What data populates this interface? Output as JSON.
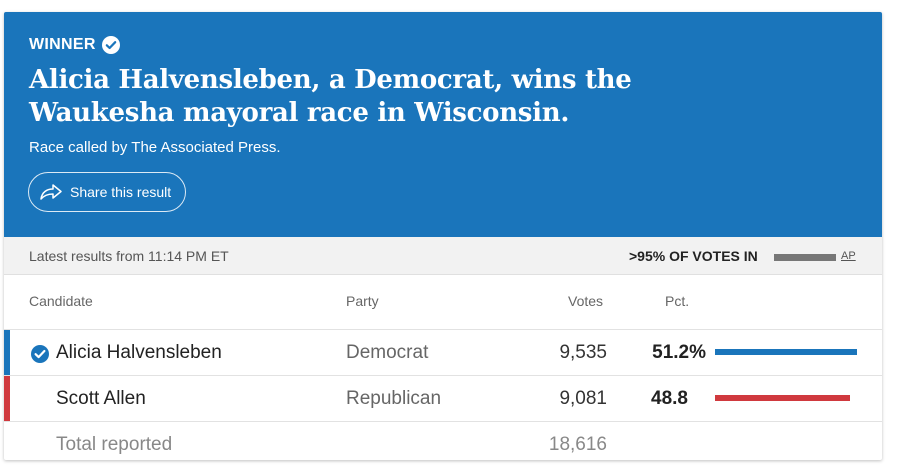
{
  "banner": {
    "winner_label": "WINNER",
    "headline": "Alicia Halvensleben, a Democrat, wins the Waukesha mayoral race in Wisconsin.",
    "called_by": "Race called by The Associated Press.",
    "share_label": "Share this result",
    "color": "#1a75bb"
  },
  "status": {
    "latest": "Latest results from 11:14 PM ET",
    "votes_in": ">95% OF VOTES IN",
    "ap_label": "AP"
  },
  "table": {
    "headers": {
      "candidate": "Candidate",
      "party": "Party",
      "votes": "Votes",
      "pct": "Pct."
    },
    "rows": [
      {
        "candidate": "Alicia Halvensleben",
        "party": "Democrat",
        "votes": "9,535",
        "pct": "51.2%",
        "pct_value": 51.2,
        "winner": true,
        "color": "#1a75bb"
      },
      {
        "candidate": "Scott Allen",
        "party": "Republican",
        "votes": "9,081",
        "pct": "48.8",
        "pct_value": 48.8,
        "winner": false,
        "color": "#d0393e"
      }
    ],
    "total": {
      "label": "Total reported",
      "votes": "18,616"
    }
  }
}
